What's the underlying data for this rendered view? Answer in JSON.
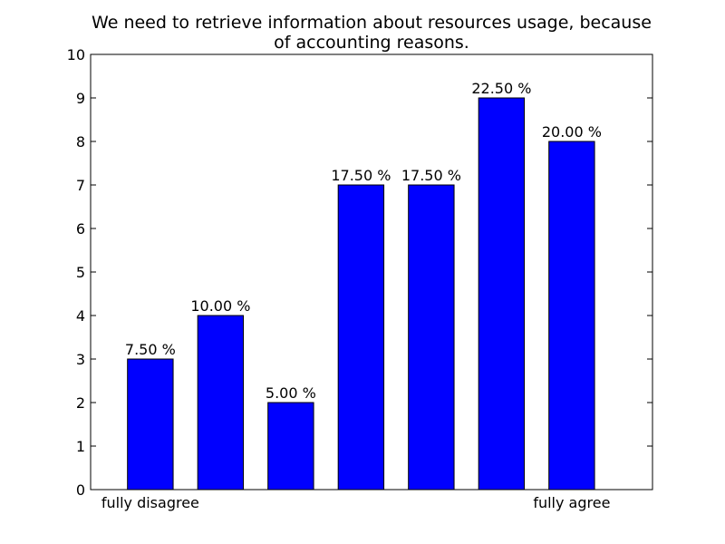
{
  "chart_data": {
    "type": "bar",
    "title_lines": [
      "We need to retrieve information about resources usage, because",
      "of accounting reasons."
    ],
    "categories": [
      "fully disagree",
      "",
      "",
      "",
      "",
      "",
      "fully agree"
    ],
    "values": [
      3,
      4,
      2,
      7,
      7,
      9,
      8
    ],
    "data_labels": [
      "7.50 %",
      "10.00 %",
      "5.00 %",
      "17.50 %",
      "17.50 %",
      "22.50 %",
      "20.00 %"
    ],
    "ylim": [
      0,
      10
    ],
    "yticks": [
      "0",
      "1",
      "2",
      "3",
      "4",
      "5",
      "6",
      "7",
      "8",
      "9",
      "10"
    ],
    "grid": false,
    "bar_color": "#0000ff",
    "edge_color": "#000000"
  }
}
